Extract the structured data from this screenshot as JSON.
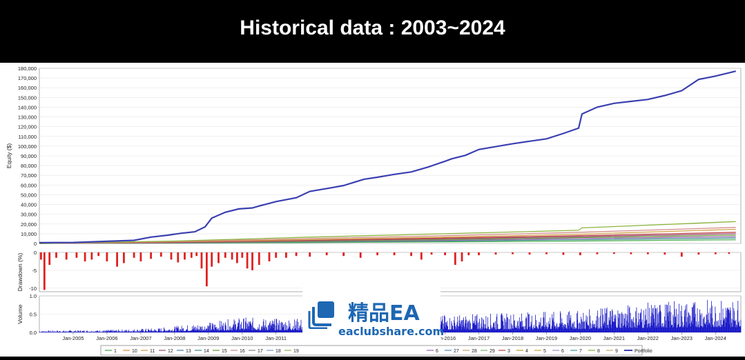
{
  "header": {
    "title": "Historical data : 2003~2024"
  },
  "chart_data": [
    {
      "type": "line",
      "ylabel": "Equity ($)",
      "xlabel": "",
      "ylim": [
        0,
        180000
      ],
      "y_ticks": [
        "0",
        "10,000",
        "20,000",
        "30,000",
        "40,000",
        "50,000",
        "60,000",
        "70,000",
        "80,000",
        "90,000",
        "100,000",
        "110,000",
        "120,000",
        "130,000",
        "140,000",
        "150,000",
        "160,000",
        "170,000",
        "180,000"
      ],
      "xlim": [
        2004.0,
        2024.75
      ],
      "grid": true,
      "legend_position": "bottom",
      "series": [
        {
          "name": "Portfolio",
          "color": "#3a3fb0",
          "x": [
            2004.0,
            2005.0,
            2006.0,
            2006.8,
            2007.3,
            2007.8,
            2008.2,
            2008.6,
            2008.9,
            2009.1,
            2009.5,
            2009.9,
            2010.3,
            2010.5,
            2011.0,
            2011.6,
            2012.0,
            2012.6,
            2013.0,
            2013.6,
            2014.0,
            2014.5,
            2015.0,
            2015.5,
            2016.0,
            2016.2,
            2016.6,
            2017.0,
            2017.5,
            2018.0,
            2018.5,
            2019.0,
            2019.5,
            2019.95,
            2020.05,
            2020.5,
            2021.0,
            2021.5,
            2022.0,
            2022.5,
            2023.0,
            2023.5,
            2024.0,
            2024.6
          ],
          "y": [
            800,
            1000,
            2200,
            3200,
            6500,
            8500,
            10500,
            12000,
            17000,
            26000,
            32000,
            35500,
            36500,
            38500,
            43000,
            47000,
            53500,
            57000,
            59500,
            66000,
            68000,
            71000,
            73500,
            78500,
            84500,
            87000,
            90500,
            96500,
            99500,
            102500,
            105000,
            107500,
            113000,
            118500,
            133000,
            140000,
            144000,
            146000,
            148000,
            152000,
            157000,
            168500,
            172000,
            177000
          ]
        },
        {
          "name": "8",
          "color": "#8cb43c",
          "x": [
            2004.0,
            2008.0,
            2012.0,
            2016.0,
            2019.95,
            2020.05,
            2024.6
          ],
          "y": [
            0,
            2500,
            6500,
            10000,
            13500,
            16000,
            22500
          ]
        },
        {
          "name": "16",
          "color": "#d48a8a",
          "x": [
            2004.0,
            2008.0,
            2012.0,
            2016.0,
            2020.0,
            2024.6
          ],
          "y": [
            0,
            2000,
            5000,
            8000,
            11500,
            16500
          ]
        },
        {
          "name": "11",
          "color": "#d1a54a",
          "x": [
            2004.0,
            2008.0,
            2012.0,
            2016.0,
            2020.0,
            2024.6
          ],
          "y": [
            0,
            1800,
            4000,
            6500,
            9500,
            14500
          ]
        },
        {
          "name": "13",
          "color": "#c04848",
          "x": [
            2004.0,
            2008.0,
            2012.0,
            2016.0,
            2020.0,
            2024.6
          ],
          "y": [
            0,
            1200,
            3500,
            5500,
            8000,
            11500
          ]
        },
        {
          "name": "3",
          "color": "#a4537e",
          "x": [
            2004.0,
            2008.0,
            2012.0,
            2016.0,
            2020.0,
            2024.6
          ],
          "y": [
            0,
            1000,
            2800,
            4800,
            7000,
            10000
          ]
        },
        {
          "name": "15",
          "color": "#6b9e3a",
          "x": [
            2004.0,
            2008.0,
            2012.0,
            2016.0,
            2020.0,
            2024.6
          ],
          "y": [
            0,
            900,
            2300,
            4000,
            6000,
            8500
          ]
        },
        {
          "name": "6",
          "color": "#9c6bb5",
          "x": [
            2004.0,
            2008.0,
            2012.0,
            2016.0,
            2020.0,
            2024.6
          ],
          "y": [
            0,
            700,
            2000,
            3200,
            5000,
            7000
          ]
        },
        {
          "name": "14",
          "color": "#3f8f8f",
          "x": [
            2004.0,
            2008.0,
            2012.0,
            2016.0,
            2020.0,
            2024.6
          ],
          "y": [
            0,
            500,
            1500,
            2500,
            3800,
            5500
          ]
        },
        {
          "name": "1",
          "color": "#4caf50",
          "x": [
            2004.0,
            2008.0,
            2012.0,
            2016.0,
            2020.0,
            2024.6
          ],
          "y": [
            0,
            300,
            900,
            1600,
            2500,
            3800
          ]
        }
      ]
    },
    {
      "type": "bar",
      "ylabel": "Drawdown (%)",
      "ylim": [
        -11,
        0
      ],
      "y_ticks": [
        "0",
        "-5",
        "-10"
      ],
      "color": "#e02020",
      "x": [
        2004.05,
        2004.15,
        2004.3,
        2004.5,
        2004.8,
        2005.1,
        2005.35,
        2005.55,
        2005.75,
        2006.0,
        2006.3,
        2006.5,
        2006.8,
        2007.0,
        2007.3,
        2007.6,
        2007.9,
        2008.1,
        2008.3,
        2008.5,
        2008.65,
        2008.8,
        2008.95,
        2009.1,
        2009.3,
        2009.5,
        2009.7,
        2009.85,
        2010.0,
        2010.15,
        2010.3,
        2010.5,
        2010.8,
        2011.0,
        2011.3,
        2011.6,
        2012.0,
        2012.5,
        2013.0,
        2013.5,
        2014.0,
        2014.5,
        2015.0,
        2015.3,
        2015.6,
        2016.0,
        2016.3,
        2016.5,
        2016.7,
        2017.0,
        2017.5,
        2018.0,
        2018.5,
        2019.0,
        2019.5,
        2020.0,
        2020.5,
        2021.0,
        2021.5,
        2022.0,
        2022.5,
        2023.0,
        2023.5,
        2024.0,
        2024.4
      ],
      "values": [
        -2.0,
        -10.5,
        -3.5,
        -1.5,
        -2.0,
        -1.5,
        -2.5,
        -2.0,
        -1.0,
        -2.5,
        -4.0,
        -3.0,
        -1.5,
        -2.5,
        -1.8,
        -1.2,
        -2.0,
        -2.8,
        -2.0,
        -1.5,
        -1.0,
        -4.5,
        -9.5,
        -4.0,
        -3.0,
        -1.5,
        -2.0,
        -3.0,
        -1.5,
        -4.5,
        -5.0,
        -3.5,
        -2.5,
        -1.5,
        -1.5,
        -1.0,
        -1.2,
        -0.8,
        -1.0,
        -1.5,
        -0.8,
        -0.8,
        -1.0,
        -2.0,
        -0.6,
        -0.8,
        -3.5,
        -2.5,
        -0.8,
        -0.8,
        -0.6,
        -0.5,
        -0.6,
        -0.5,
        -0.7,
        -0.8,
        -0.5,
        -0.4,
        -0.5,
        -0.5,
        -0.6,
        -1.2,
        -0.6,
        -0.5,
        -0.4
      ]
    },
    {
      "type": "bar",
      "ylabel": "Volume",
      "ylim": [
        0,
        1.0
      ],
      "y_ticks": [
        "0.0",
        "0.5",
        "1.0"
      ],
      "color": "#1a1ac8",
      "x_ticks": [
        "Jan-2005",
        "Jan-2006",
        "Jan-2007",
        "Jan-2008",
        "Jan-2009",
        "Jan-2010",
        "Jan-2011",
        "Jan-2016",
        "Jan-2017",
        "Jan-2018",
        "Jan-2019",
        "Jan-2020",
        "Jan-2021",
        "Jan-2022",
        "Jan-2023",
        "Jan-2024"
      ],
      "x_tick_positions": [
        2005,
        2006,
        2007,
        2008,
        2009,
        2010,
        2011,
        2016,
        2017,
        2018,
        2019,
        2020,
        2021,
        2022,
        2023,
        2024
      ],
      "envelope_x": [
        2004.0,
        2006.0,
        2007.5,
        2009.0,
        2010.0,
        2011.0,
        2016.0,
        2018.0,
        2020.0,
        2021.0,
        2022.5,
        2024.6
      ],
      "envelope_y": [
        0.05,
        0.07,
        0.12,
        0.28,
        0.42,
        0.38,
        0.48,
        0.55,
        0.6,
        0.75,
        0.85,
        0.95
      ]
    }
  ],
  "legend": {
    "items": [
      {
        "label": "1",
        "color": "#4caf50"
      },
      {
        "label": "10",
        "color": "#e69138"
      },
      {
        "label": "11",
        "color": "#d1a54a"
      },
      {
        "label": "12",
        "color": "#a4537e"
      },
      {
        "label": "13",
        "color": "#4a86b5"
      },
      {
        "label": "14",
        "color": "#3f8f8f"
      },
      {
        "label": "15",
        "color": "#6b9e3a"
      },
      {
        "label": "16",
        "color": "#d48a8a"
      },
      {
        "label": "17",
        "color": "#8a8a8a"
      },
      {
        "label": "18",
        "color": "#7aa0c8"
      },
      {
        "label": "19",
        "color": "#9cb858"
      },
      {
        "label": "6",
        "color": "#9c6bb5"
      },
      {
        "label": "27",
        "color": "#5f8fb8"
      },
      {
        "label": "28",
        "color": "#c9a66b"
      },
      {
        "label": "29",
        "color": "#7cc47c"
      },
      {
        "label": "3",
        "color": "#c04848"
      },
      {
        "label": "4",
        "color": "#b8a040"
      },
      {
        "label": "5",
        "color": "#d4a84a"
      },
      {
        "label": "6",
        "color": "#9c9ccc"
      },
      {
        "label": "7",
        "color": "#4aa0a0"
      },
      {
        "label": "8",
        "color": "#8cb43c"
      },
      {
        "label": "9",
        "color": "#c7b56a"
      },
      {
        "label": "Portfolio",
        "color": "#3a3fb0"
      }
    ]
  },
  "watermark": {
    "text_zh": "精品EA",
    "url": "eaclubshare.com",
    "color": "#1d67b3"
  }
}
